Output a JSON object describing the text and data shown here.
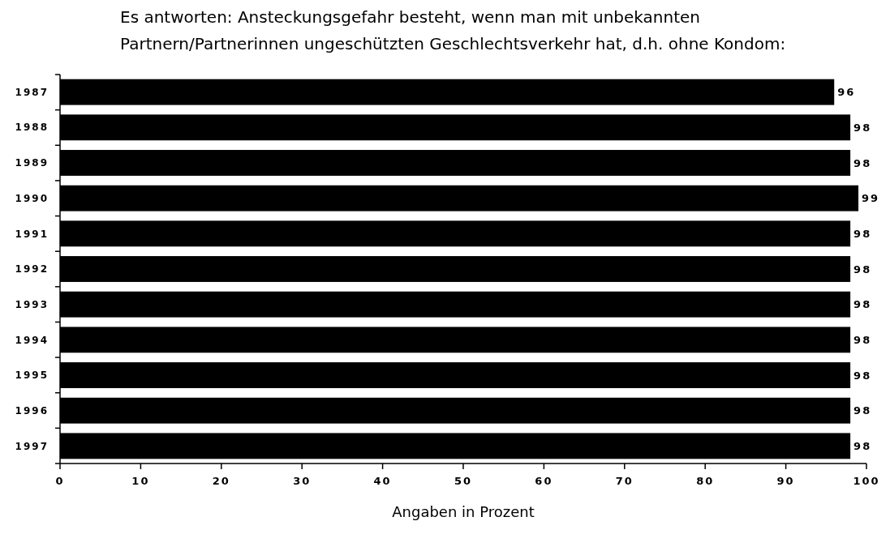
{
  "chart_data": {
    "type": "bar",
    "orientation": "horizontal",
    "title": "Es antworten: Ansteckungsgefahr besteht, wenn man mit unbekannten\nPartnern/Partnerinnen ungeschützten Geschlechtsverkehr hat, d.h. ohne Kondom:",
    "categories": [
      "1987",
      "1988",
      "1989",
      "1990",
      "1991",
      "1992",
      "1993",
      "1994",
      "1995",
      "1996",
      "1997"
    ],
    "values": [
      96,
      98,
      98,
      99,
      98,
      98,
      98,
      98,
      98,
      98,
      98
    ],
    "color": "#000000",
    "data_labels": true,
    "xlim": [
      0,
      100
    ],
    "xticks": [
      0,
      10,
      20,
      30,
      40,
      50,
      60,
      70,
      80,
      90,
      100
    ],
    "xlabel": "Angaben in Prozent",
    "grid": false
  }
}
